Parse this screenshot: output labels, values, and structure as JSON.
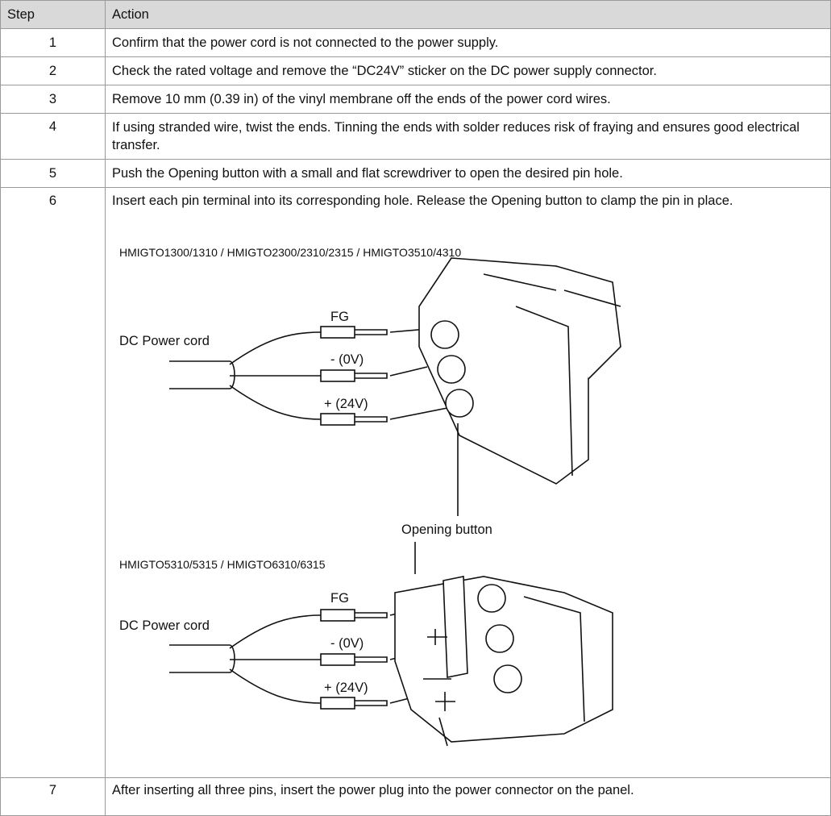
{
  "table": {
    "header": [
      "Step",
      "Action"
    ],
    "rows": [
      [
        "1",
        "Confirm that the power cord is not connected to the power supply."
      ],
      [
        "2",
        "Check the rated voltage and remove the “DC24V” sticker on the DC power supply connector."
      ],
      [
        "3",
        "Remove 10 mm (0.39 in) of the vinyl membrane off the ends of the power cord wires."
      ],
      [
        "4",
        "If using stranded wire, twist the ends. Tinning the ends with solder reduces risk of fraying and ensures good electrical transfer."
      ],
      [
        "5",
        "Push the Opening button with a small and flat screwdriver to open the desired pin hole."
      ],
      [
        "6",
        "Insert each pin terminal into its corresponding hole. Release the Opening button to clamp the pin in place."
      ],
      [
        "7",
        "After inserting all three pins, insert the power plug into the power connector on the panel."
      ]
    ]
  },
  "figure": {
    "diagrams": [
      {
        "caption": "HMIGTO1300/1310 / HMIGTO2300/2310/2315 / HMIGTO3510/4310",
        "cord": "DC Power cord",
        "fg": "FG",
        "neg": "- (0V)",
        "pos": "+ (24V)"
      },
      {
        "caption": "HMIGTO5310/5315 / HMIGTO6310/6315",
        "cord": "DC Power cord",
        "fg": "FG",
        "neg": "- (0V)",
        "pos": "+ (24V)"
      }
    ],
    "opening_button": "Opening button"
  }
}
